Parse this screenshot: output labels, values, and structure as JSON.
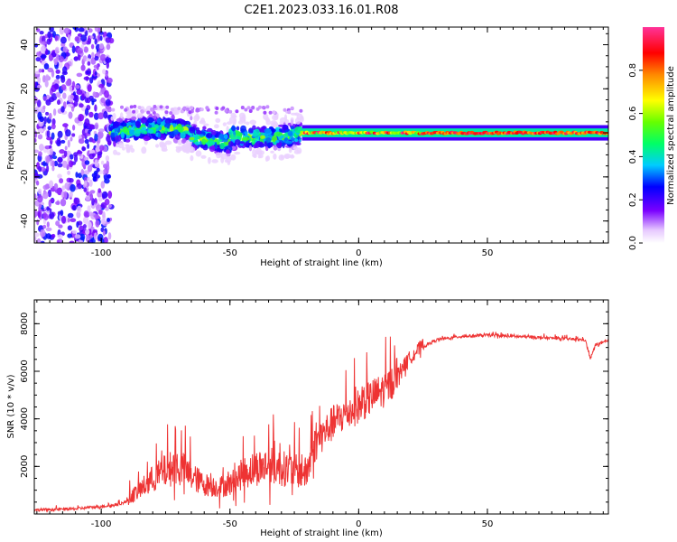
{
  "title": "C2E1.2023.033.16.01.R08",
  "colors": {
    "snr_line": "#ee3333",
    "axis": "#000000",
    "background": "#ffffff"
  },
  "chart_data": [
    {
      "type": "heatmap",
      "title": "C2E1.2023.033.16.01.R08",
      "xlabel": "Height of straight line (km)",
      "ylabel": "Frequency (Hz)",
      "xlim": [
        -126,
        97
      ],
      "ylim": [
        -50,
        48
      ],
      "xticks": [
        -100,
        -50,
        0,
        50
      ],
      "xtick_labels": [
        "-100",
        "-50",
        "0",
        "50"
      ],
      "yticks": [
        -40,
        -20,
        0,
        20,
        40
      ],
      "ytick_labels": [
        "-40",
        "-20",
        "0",
        "20",
        "40"
      ],
      "colorbar": {
        "label": "Normalized spectral amplitude",
        "range": [
          0,
          1
        ],
        "ticks": [
          0.0,
          0.2,
          0.4,
          0.6,
          0.8
        ],
        "tick_labels": [
          "0.0",
          "0.2",
          "0.4",
          "0.6",
          "0.8"
        ],
        "colormap": "rainbow (white-magenta-violet-blue-cyan-green-yellow-red-pink)"
      },
      "regions": [
        {
          "x_range": [
            -126,
            -96
          ],
          "description": "broadband low-amplitude noise",
          "freq_range": [
            -50,
            48
          ],
          "amplitude": 0.25
        },
        {
          "x_range": [
            -96,
            -22
          ],
          "description": "signal with spread",
          "freq_range": [
            -10,
            10
          ],
          "amplitude": 0.5
        },
        {
          "x_range": [
            -22,
            97
          ],
          "description": "narrow strong tone",
          "freq_range": [
            -2,
            2
          ],
          "amplitude": 0.85
        }
      ]
    },
    {
      "type": "line",
      "xlabel": "Height of straight line (km)",
      "ylabel": "SNR (10 * v/v)",
      "xlim": [
        -126,
        97
      ],
      "ylim": [
        0,
        9000
      ],
      "xticks": [
        -100,
        -50,
        0,
        50
      ],
      "xtick_labels": [
        "-100",
        "-50",
        "0",
        "50"
      ],
      "yticks": [
        2000,
        4000,
        6000,
        8000
      ],
      "ytick_labels": [
        "2000",
        "4000",
        "6000",
        "8000"
      ],
      "series": [
        {
          "name": "SNR",
          "x": [
            -126,
            -110,
            -95,
            -90,
            -85,
            -80,
            -75,
            -70,
            -65,
            -60,
            -55,
            -50,
            -45,
            -40,
            -35,
            -30,
            -25,
            -20,
            -18,
            -15,
            -10,
            -5,
            0,
            5,
            10,
            12,
            15,
            20,
            25,
            30,
            40,
            50,
            60,
            70,
            80,
            88,
            90,
            92,
            97
          ],
          "values": [
            150,
            200,
            350,
            500,
            900,
            1300,
            1600,
            1800,
            1400,
            1100,
            1000,
            1100,
            1500,
            1700,
            1800,
            1700,
            1600,
            1500,
            2500,
            3000,
            3600,
            4000,
            4300,
            4700,
            5000,
            5200,
            5800,
            6500,
            7000,
            7300,
            7450,
            7500,
            7450,
            7400,
            7350,
            7300,
            6500,
            7100,
            7250
          ]
        }
      ]
    }
  ]
}
